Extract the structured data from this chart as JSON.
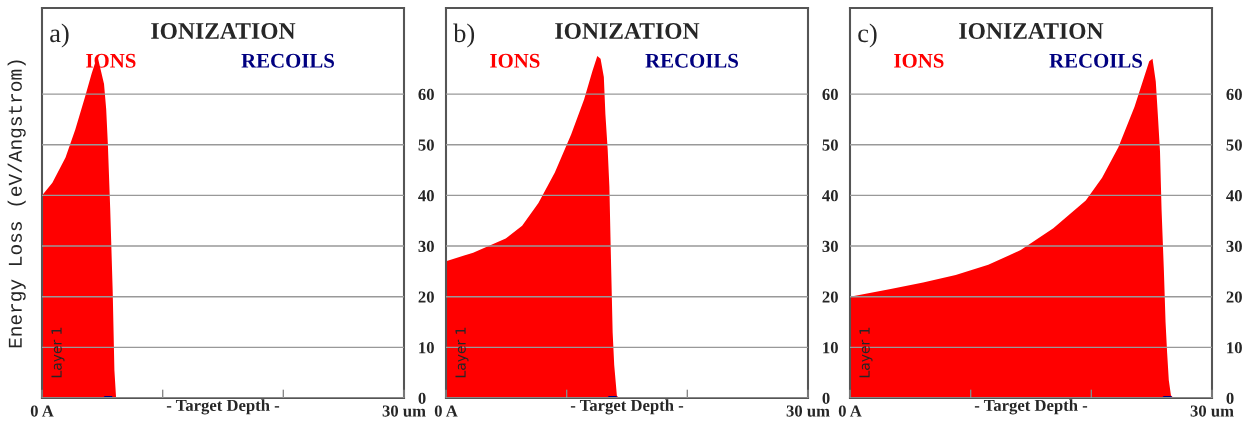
{
  "chart_data": [
    {
      "type": "area",
      "title": "IONIZATION",
      "ylabel": "Energy Loss (eV/Angstrom)",
      "xlabel": "- Target Depth -",
      "annotations": [
        "a)",
        "Layer 1"
      ],
      "grid": "y",
      "xlim": [
        0,
        30
      ],
      "xticks": [
        {
          "value": 0,
          "label": "0 A"
        },
        {
          "value": 10,
          "label": null
        },
        {
          "value": 20,
          "label": null
        },
        {
          "value": 30,
          "label": "30 um"
        }
      ],
      "ylim": [
        0,
        77
      ],
      "yticks": [
        0,
        10,
        20,
        30,
        40,
        50,
        60
      ],
      "series": [
        {
          "name": "IONS",
          "color": "#ff0000",
          "x": [
            0,
            0.86,
            1.95,
            2.76,
            3.57,
            4.11,
            4.51,
            4.65,
            5.14,
            5.32,
            5.46,
            5.65,
            5.86,
            6.0,
            6.14
          ],
          "values": [
            40,
            42.5,
            47.5,
            53,
            59.5,
            64,
            67,
            67,
            62,
            57,
            50,
            37.5,
            21,
            5.5,
            0
          ]
        },
        {
          "name": "RECOILS",
          "color": "#000080",
          "x": [
            5.0,
            5.2,
            5.8,
            5.9
          ],
          "values": [
            0,
            0.4,
            0.4,
            0
          ]
        }
      ]
    },
    {
      "type": "area",
      "title": "IONIZATION",
      "xlabel": "- Target Depth -",
      "annotations": [
        "b)",
        "Layer 1"
      ],
      "grid": "y",
      "xlim": [
        0,
        30
      ],
      "xticks": [
        {
          "value": 0,
          "label": "0 A"
        },
        {
          "value": 10,
          "label": null
        },
        {
          "value": 20,
          "label": null
        },
        {
          "value": 30,
          "label": "30 um"
        }
      ],
      "ylim": [
        0,
        77
      ],
      "yticks": [
        0,
        10,
        20,
        30,
        40,
        50,
        60
      ],
      "series": [
        {
          "name": "IONS",
          "color": "#ff0000",
          "x": [
            0,
            2.25,
            4.95,
            6.31,
            7.66,
            9.02,
            10.37,
            11.45,
            12.13,
            12.54,
            12.81,
            13.08,
            13.21,
            13.4,
            13.54,
            13.67,
            13.81,
            13.94,
            14.16,
            14.3
          ],
          "values": [
            27,
            28.7,
            31.5,
            34,
            38.5,
            44.5,
            52,
            59,
            64.5,
            67.5,
            67,
            63.4,
            56,
            49,
            41.7,
            27.5,
            13,
            6.5,
            0.5,
            0
          ]
        },
        {
          "name": "RECOILS",
          "color": "#000080",
          "x": [
            13.3,
            13.5,
            14.1,
            14.3
          ],
          "values": [
            0,
            0.4,
            0.4,
            0
          ]
        }
      ]
    },
    {
      "type": "area",
      "title": "IONIZATION",
      "xlabel": "- Target Depth -",
      "annotations": [
        "c)",
        "Layer 1"
      ],
      "grid": "y",
      "xlim": [
        0,
        30
      ],
      "xticks": [
        {
          "value": 0,
          "label": "0 A"
        },
        {
          "value": 10,
          "label": null
        },
        {
          "value": 20,
          "label": null
        },
        {
          "value": 30,
          "label": "30 um"
        }
      ],
      "ylim": [
        0,
        77
      ],
      "yticks": [
        0,
        10,
        20,
        30,
        40,
        50,
        60
      ],
      "series": [
        {
          "name": "IONS",
          "color": "#ff0000",
          "x": [
            0,
            3.37,
            6.06,
            8.76,
            11.46,
            14.15,
            16.85,
            19.54,
            20.89,
            22.24,
            23.58,
            24.39,
            24.8,
            25.07,
            25.34,
            25.52,
            25.69,
            25.82,
            26.01,
            26.15,
            26.28,
            26.42,
            26.6,
            26.82
          ],
          "values": [
            20,
            21.5,
            22.8,
            24.3,
            26.3,
            29.2,
            33.5,
            39,
            43.5,
            49.5,
            57.5,
            63.5,
            66.5,
            67,
            62.5,
            55.6,
            48.7,
            37.2,
            25.3,
            15,
            9,
            3.5,
            0.5,
            0
          ]
        },
        {
          "name": "RECOILS",
          "color": "#000080",
          "x": [
            25.8,
            26.0,
            26.6,
            26.8
          ],
          "values": [
            0,
            0.4,
            0.4,
            0
          ]
        }
      ]
    }
  ]
}
